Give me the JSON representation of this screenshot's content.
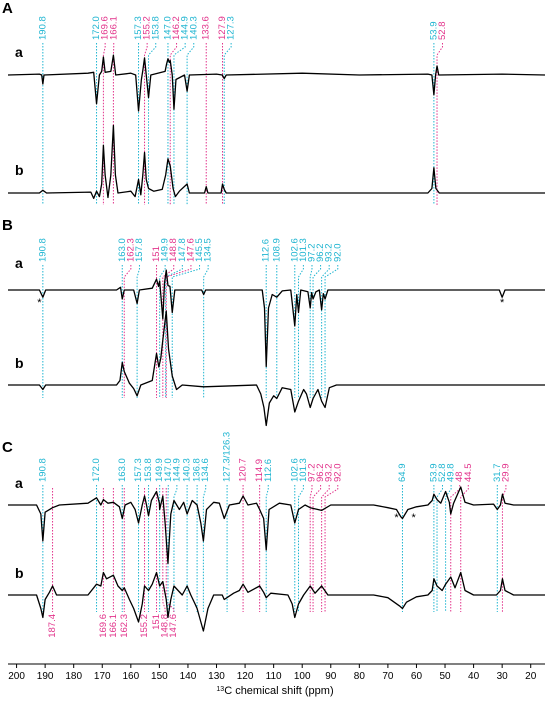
{
  "chart_data": {
    "type": "line",
    "xlabel_sup": "13",
    "xlabel": "C chemical shift (ppm)",
    "xlim": [
      203,
      15
    ],
    "xticks": [
      200,
      190,
      180,
      170,
      160,
      150,
      140,
      130,
      120,
      110,
      100,
      90,
      80,
      70,
      60,
      50,
      40,
      30,
      20
    ],
    "line_color": "#000000",
    "panels": [
      {
        "label": "A",
        "traces": [
          {
            "name": "a",
            "x": [
              203,
              192,
              191.2,
              190.8,
              190.4,
              175,
              173,
              172,
              171,
              170.2,
              169.6,
              169,
              167,
              166.1,
              165.3,
              160,
              158.3,
              157.3,
              156.3,
              155.8,
              155.2,
              154.6,
              153.8,
              153,
              148,
              147.5,
              147,
              146.5,
              146.2,
              145.5,
              144.9,
              144.2,
              141.2,
              140.3,
              139.5,
              130,
              128,
              127.3,
              126.6,
              100,
              80,
              56,
              54.6,
              53.9,
              53.3,
              52.8,
              52.2,
              30,
              15
            ],
            "values": [
              0,
              1,
              0,
              -10,
              0,
              2,
              3,
              -32,
              0,
              4,
              20,
              3,
              4,
              22,
              0,
              2,
              0,
              -40,
              -5,
              5,
              19,
              0,
              -25,
              0,
              4,
              12,
              18,
              14,
              16,
              0,
              -38,
              -5,
              0,
              -18,
              0,
              1,
              0,
              -4,
              0,
              2,
              0,
              1,
              0,
              -22,
              0,
              10,
              0,
              1,
              0
            ]
          },
          {
            "name": "b",
            "x": [
              203,
              192,
              190.8,
              189.5,
              174,
              173,
              172,
              171,
              170.2,
              169.6,
              169,
              168,
              167,
              166.1,
              165.4,
              164.5,
              160,
              158.5,
              157.3,
              156.5,
              155.8,
              155.2,
              154.6,
              153.8,
              152,
              149,
              147.8,
              147,
              146.2,
              145.2,
              144.4,
              143,
              140.3,
              139.5,
              134.2,
              133.6,
              133,
              128.4,
              127.9,
              127.3,
              126.6,
              56,
              54.6,
              53.9,
              53.2,
              52,
              15
            ],
            "values": [
              0,
              0,
              3,
              0,
              1,
              -6,
              2,
              -4,
              10,
              53,
              20,
              -5,
              20,
              75,
              20,
              0,
              2,
              -4,
              15,
              -2,
              20,
              45,
              15,
              5,
              2,
              4,
              20,
              38,
              30,
              5,
              -4,
              2,
              10,
              0,
              0,
              7,
              0,
              0,
              10,
              4,
              0,
              0,
              5,
              28,
              5,
              0,
              0
            ]
          }
        ],
        "peak_labels": [
          {
            "color": "#1fb5d1",
            "position": "top",
            "values": [
              190.8,
              {
                "value": 172,
                "label": "172.0"
              },
              157.3,
              153.8,
              {
                "value": 147,
                "label": "147.0"
              },
              144.9,
              140.3,
              127.3,
              53.9
            ]
          },
          {
            "color": "#e2338b",
            "position": "top",
            "values": [
              169.6,
              166.1,
              155.2,
              146.2,
              133.6,
              127.9,
              52.8
            ]
          }
        ]
      },
      {
        "label": "B",
        "traces": [
          {
            "name": "a",
            "x": [
              203,
              192,
              190.8,
              189.8,
              165,
              163.6,
              163,
              162.3,
              159,
              157.8,
              157,
              152.5,
              151,
              150.3,
              149.9,
              148.8,
              148.2,
              147.6,
              147,
              146.3,
              145.5,
              144.6,
              135.2,
              134.5,
              133.8,
              114,
              113.2,
              112.6,
              111.8,
              110.5,
              108.9,
              107,
              104,
              102.6,
              101.9,
              101.3,
              100.5,
              98,
              97.2,
              96.7,
              96.2,
              95.2,
              94,
              93.2,
              92.6,
              92,
              91,
              88,
              31,
              30,
              29,
              15
            ],
            "values": [
              0,
              0,
              -8,
              0,
              0,
              3,
              -10,
              0,
              0,
              -15,
              0,
              2,
              12,
              4,
              10,
              -32,
              8,
              22,
              5,
              4,
              -25,
              0,
              0,
              -5,
              0,
              0,
              -20,
              -85,
              -20,
              -5,
              -8,
              -1,
              0,
              -40,
              -5,
              -25,
              0,
              -2,
              -20,
              -3,
              -10,
              -2,
              0,
              -22,
              -4,
              -10,
              0,
              0,
              0,
              -8,
              0,
              0
            ]
          },
          {
            "name": "b",
            "x": [
              203,
              192,
              190.8,
              189.8,
              165,
              163.8,
              163,
              162.3,
              160.5,
              159,
              157.8,
              156.5,
              152.5,
              151,
              150.2,
              149.5,
              148.8,
              147.6,
              146.8,
              145.5,
              144,
              142,
              134.5,
              116,
              114.5,
              113.4,
              112.6,
              111.5,
              110,
              108.9,
              107,
              104,
              102.6,
              101.3,
              99.5,
              98.5,
              97.2,
              96.2,
              94.5,
              93.2,
              92,
              90.5,
              88,
              15
            ],
            "values": [
              0,
              0,
              -5,
              0,
              0,
              5,
              25,
              15,
              2,
              -4,
              -12,
              0,
              5,
              35,
              20,
              30,
              50,
              82,
              40,
              10,
              -5,
              0,
              -2,
              0,
              -10,
              -25,
              -45,
              -20,
              -12,
              -15,
              -3,
              -5,
              -30,
              -18,
              -5,
              -10,
              -25,
              -15,
              -5,
              -18,
              -25,
              -3,
              0,
              0
            ]
          }
        ],
        "peak_labels": [
          {
            "color": "#1fb5d1",
            "position": "top",
            "values": [
              190.8,
              {
                "value": 163,
                "label": "163.0"
              },
              157.8,
              149.9,
              147.8,
              145.5,
              134.5,
              112.6,
              108.9,
              102.6,
              101.3,
              97.2,
              96.2,
              93.2,
              {
                "value": 92,
                "label": "92.0"
              }
            ]
          },
          {
            "color": "#e2338b",
            "position": "top",
            "values": [
              162.3,
              151.0,
              148.8,
              147.6
            ]
          }
        ],
        "asterisks": {
          "label": "*",
          "x": [
            192,
            30
          ]
        }
      },
      {
        "label": "C",
        "traces": [
          {
            "name": "a",
            "x": [
              203,
              193,
              191.5,
              190.8,
              190,
              187.4,
              185,
              175,
              172,
              170.5,
              169.6,
              168,
              166.1,
              164,
              163,
              162,
              160,
              158.5,
              157.3,
              156,
              155.2,
              154.5,
              153.8,
              152.8,
              151,
              150,
              149.9,
              148.8,
              148,
              147,
              146,
              144.9,
              143,
              141.5,
              140.3,
              138.5,
              136.8,
              135.5,
              134.6,
              133.5,
              131,
              129,
              127.3,
              125.5,
              122,
              120.7,
              119,
              116,
              114.9,
              113.5,
              112.6,
              111.6,
              108,
              104,
              102.6,
              101.3,
              99,
              97.2,
              93.2,
              90,
              75,
              70,
              67,
              65.5,
              64.9,
              63,
              60,
              56,
              54.5,
              53.9,
              52.8,
              51.5,
              49.8,
              48.5,
              48,
              47,
              44.5,
              43,
              40,
              33,
              31.7,
              30.6,
              29.9,
              29,
              26,
              15
            ],
            "values": [
              0,
              0,
              -10,
              -40,
              -8,
              -3,
              0,
              2,
              8,
              0,
              6,
              2,
              3,
              -2,
              -15,
              0,
              3,
              -5,
              -20,
              0,
              10,
              0,
              -12,
              5,
              15,
              2,
              -5,
              10,
              -20,
              -65,
              -10,
              5,
              -5,
              3,
              -10,
              5,
              0,
              -20,
              -40,
              -5,
              3,
              2,
              -15,
              0,
              2,
              10,
              0,
              2,
              -5,
              -15,
              -50,
              -5,
              2,
              0,
              -20,
              -5,
              0,
              -3,
              -6,
              0,
              0,
              -3,
              -5,
              -13,
              -15,
              -5,
              -2,
              0,
              5,
              12,
              6,
              2,
              15,
              3,
              -10,
              2,
              20,
              3,
              0,
              1,
              -5,
              0,
              12,
              2,
              0,
              0
            ]
          },
          {
            "name": "b",
            "x": [
              203,
              193,
              191.5,
              190.8,
              190,
              188.5,
              187.4,
              186,
              175,
              172,
              170.5,
              169.6,
              168.5,
              166.1,
              164.5,
              163,
              162.3,
              160.5,
              159,
              157.3,
              156,
              155.2,
              153.8,
              152.5,
              151,
              149.9,
              148.8,
              147.6,
              147,
              146,
              144.9,
              142,
              140.3,
              139,
              137.5,
              136.8,
              134.6,
              133,
              131,
              128,
              127.3,
              124,
              122,
              120.7,
              119,
              114.9,
              113.5,
              112.6,
              111,
              105,
              103.5,
              102.6,
              101.3,
              99.5,
              97.2,
              95.5,
              93.2,
              91,
              75,
              70,
              66,
              64.9,
              63.5,
              60,
              56,
              54.5,
              53.9,
              52.8,
              51,
              49.8,
              48,
              46.5,
              44.5,
              43,
              40,
              32,
              30.6,
              29.9,
              29,
              26,
              15
            ],
            "values": [
              0,
              0,
              -15,
              -25,
              -5,
              3,
              10,
              0,
              0,
              12,
              10,
              25,
              18,
              22,
              10,
              5,
              8,
              -5,
              -15,
              -30,
              -10,
              10,
              5,
              12,
              25,
              10,
              15,
              -5,
              -25,
              -5,
              10,
              0,
              10,
              0,
              -10,
              -15,
              -40,
              -15,
              0,
              0,
              -5,
              2,
              5,
              12,
              3,
              10,
              3,
              -3,
              2,
              0,
              -10,
              -25,
              -10,
              0,
              10,
              2,
              10,
              0,
              0,
              -3,
              -12,
              -15,
              -8,
              -2,
              0,
              5,
              18,
              10,
              5,
              12,
              20,
              8,
              25,
              5,
              0,
              0,
              5,
              18,
              5,
              0,
              0
            ]
          }
        ],
        "peak_labels": [
          {
            "color": "#1fb5d1",
            "position": "top",
            "values": [
              190.8,
              {
                "value": 172,
                "label": "172.0"
              },
              {
                "value": 163,
                "label": "163.0"
              },
              157.3,
              153.8,
              149.9,
              {
                "value": 147,
                "label": "147.0"
              },
              144.9,
              140.3,
              136.8,
              134.6,
              {
                "value": 126.3,
                "label": "127.3/126.3"
              },
              112.6,
              102.6,
              101.3,
              64.9,
              53.9,
              52.8,
              49.8,
              31.7
            ]
          },
          {
            "color": "#e2338b",
            "position": "top",
            "values": [
              120.7,
              114.9,
              97.2,
              96.2,
              93.2,
              {
                "value": 92,
                "label": "92.0"
              },
              48.0,
              44.5,
              29.9
            ]
          },
          {
            "color": "#e2338b",
            "position": "bottom",
            "values": [
              187.4,
              169.6,
              166.1,
              162.3,
              155.2,
              151.0,
              148.8,
              147.6
            ]
          }
        ],
        "asterisks": {
          "label": "*",
          "x": [
            67,
            61
          ]
        }
      }
    ]
  }
}
